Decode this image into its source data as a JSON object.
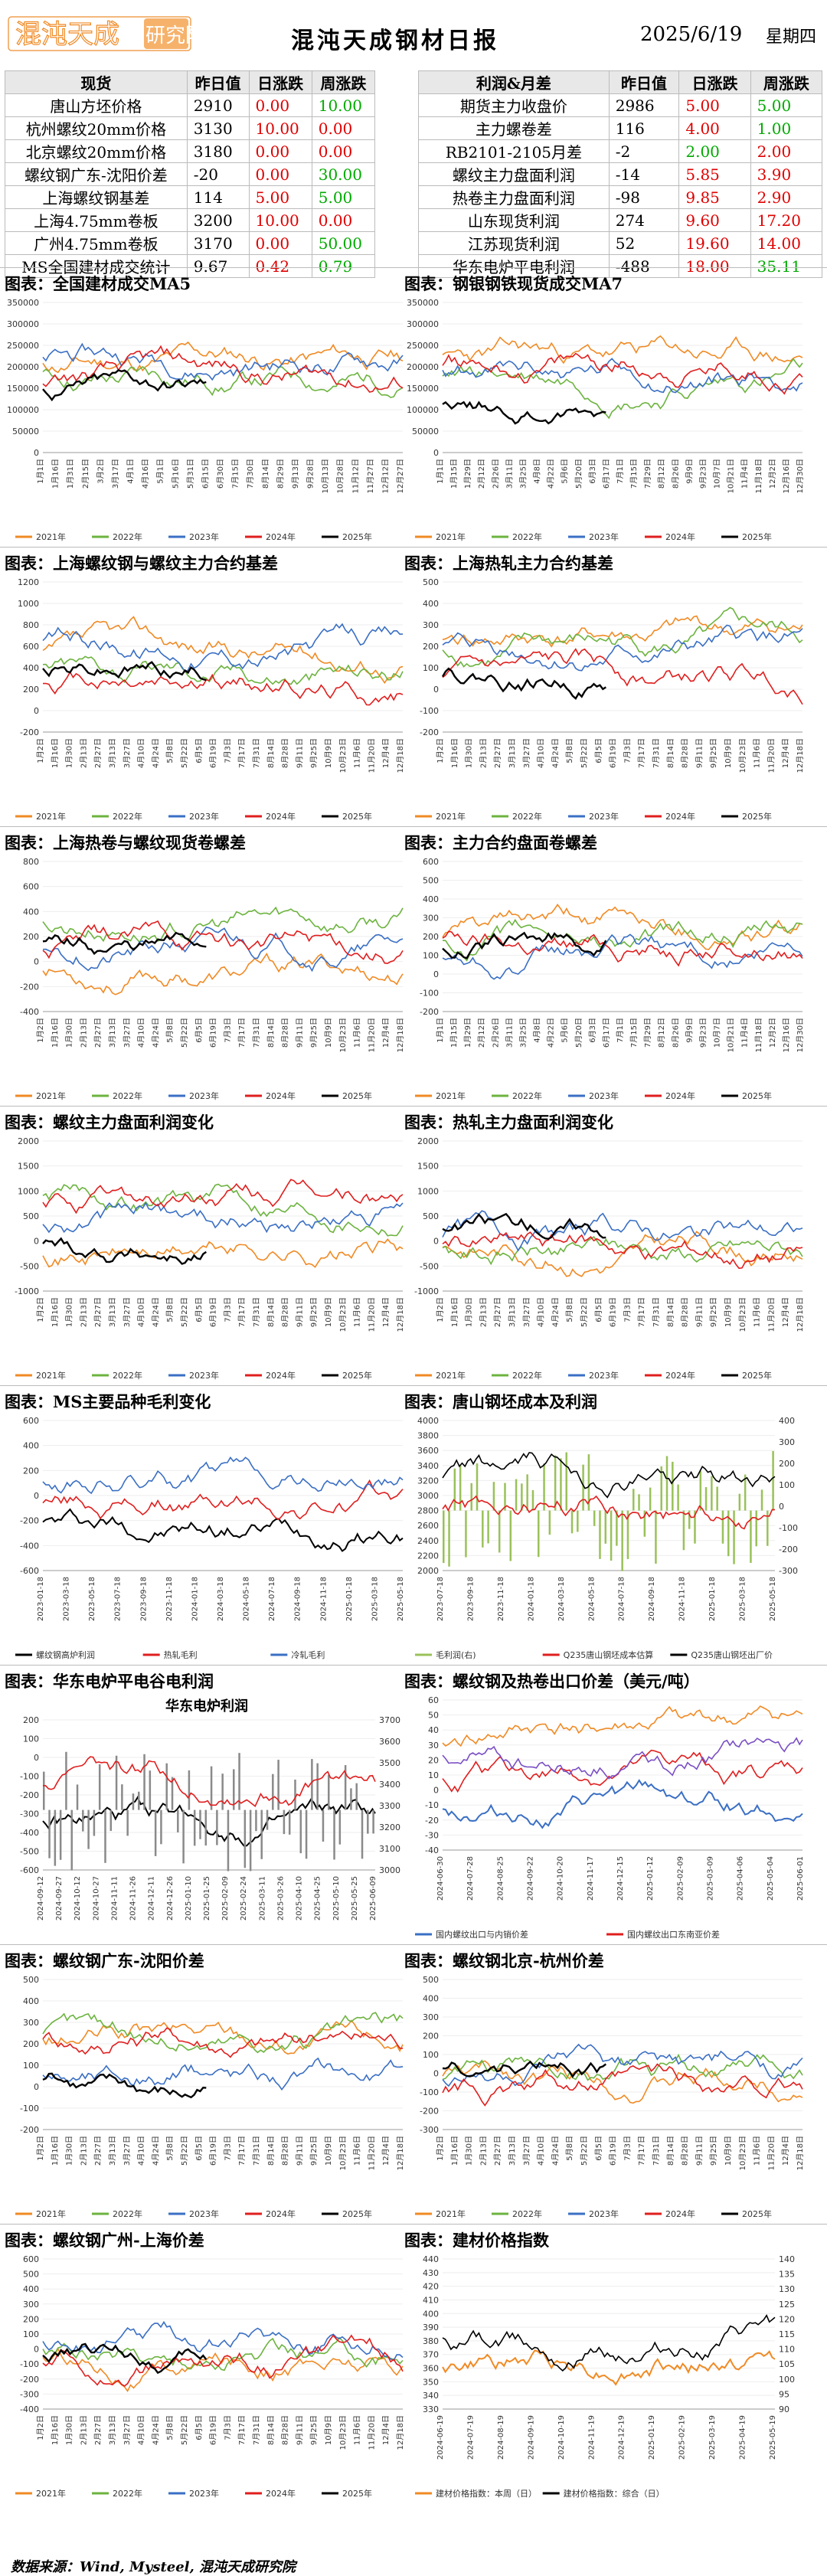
{
  "header": {
    "logo_text": "混沌天成研究院",
    "title": "混沌天成钢材日报",
    "date": "2025/6/19",
    "weekday": "星期四"
  },
  "left_table": {
    "headers": [
      "现货",
      "昨日值",
      "日涨跌",
      "周涨跌"
    ],
    "rows": [
      [
        "唐山方坯价格",
        "2910",
        "0.00",
        "10.00"
      ],
      [
        "杭州螺纹20mm价格",
        "3130",
        "10.00",
        "0.00"
      ],
      [
        "北京螺纹20mm价格",
        "3180",
        "0.00",
        "0.00"
      ],
      [
        "螺纹钢广东-沈阳价差",
        "-20",
        "0.00",
        "30.00"
      ],
      [
        "上海螺纹钢基差",
        "114",
        "5.00",
        "5.00"
      ],
      [
        "上海4.75mm卷板",
        "3200",
        "10.00",
        "0.00"
      ],
      [
        "广州4.75mm卷板",
        "3170",
        "0.00",
        "50.00"
      ],
      [
        "MS全国建材成交统计",
        "9.67",
        "0.42",
        "0.79"
      ]
    ],
    "colors": [
      [
        "red",
        "green"
      ],
      [
        "red",
        "red"
      ],
      [
        "red",
        "red"
      ],
      [
        "red",
        "green"
      ],
      [
        "red",
        "green"
      ],
      [
        "red",
        "red"
      ],
      [
        "red",
        "green"
      ],
      [
        "red",
        "green"
      ]
    ]
  },
  "right_table": {
    "headers": [
      "利润&月差",
      "昨日值",
      "日涨跌",
      "周涨跌"
    ],
    "rows": [
      [
        "期货主力收盘价",
        "2986",
        "5.00",
        "5.00"
      ],
      [
        "主力螺卷差",
        "116",
        "4.00",
        "1.00"
      ],
      [
        "RB2101-2105月差",
        "-2",
        "2.00",
        "2.00"
      ],
      [
        "螺纹主力盘面利润",
        "-14",
        "5.85",
        "3.90"
      ],
      [
        "热卷主力盘面利润",
        "-98",
        "9.85",
        "2.90"
      ],
      [
        "山东现货利润",
        "274",
        "9.60",
        "17.20"
      ],
      [
        "江苏现货利润",
        "52",
        "19.60",
        "14.00"
      ],
      [
        "华东电炉平电利润",
        "-488",
        "18.00",
        "35.11"
      ]
    ],
    "colors": [
      [
        "red",
        "green"
      ],
      [
        "red",
        "green"
      ],
      [
        "green",
        "red"
      ],
      [
        "red",
        "red"
      ],
      [
        "red",
        "red"
      ],
      [
        "red",
        "red"
      ],
      [
        "red",
        "red"
      ],
      [
        "red",
        "green"
      ]
    ]
  },
  "colors": {
    "y2021": "#f08a24",
    "y2022": "#6cb33f",
    "y2023": "#3a6fc4",
    "y2024": "#e01e1e",
    "y2025": "#000000",
    "red": "#e00000",
    "green": "#00aa00"
  },
  "legend_years": [
    "2021年",
    "2022年",
    "2023年",
    "2024年",
    "2025年"
  ],
  "panels": [
    {
      "title": "图表：全国建材成交MA5",
      "ylim": [
        0,
        350000
      ],
      "yticks": [
        "350000",
        "300000",
        "250000",
        "200000",
        "150000",
        "100000",
        "50000",
        "0"
      ],
      "xticks": [
        "1月1日",
        "1月16日",
        "1月31日",
        "2月15日",
        "3月2日",
        "3月17日",
        "4月1日",
        "4月16日",
        "5月1日",
        "5月16日",
        "5月31日",
        "6月15日",
        "6月30日",
        "7月15日",
        "7月30日",
        "8月14日",
        "8月29日",
        "9月13日",
        "9月28日",
        "10月13日",
        "10月28日",
        "11月12日",
        "11月27日",
        "12月12日",
        "12月27日"
      ],
      "legend": "years",
      "seed": 11
    },
    {
      "title": "图表：钢银钢铁现货成交MA7",
      "ylim": [
        0,
        350000
      ],
      "yticks": [
        "350000",
        "300000",
        "250000",
        "200000",
        "150000",
        "100000",
        "50000",
        "0"
      ],
      "xticks": [
        "1月1日",
        "1月15日",
        "1月29日",
        "2月12日",
        "2月26日",
        "3月11日",
        "3月25日",
        "4月8日",
        "4月22日",
        "5月6日",
        "5月20日",
        "6月3日",
        "6月17日",
        "7月1日",
        "7月15日",
        "7月29日",
        "8月12日",
        "8月26日",
        "9月9日",
        "9月23日",
        "10月7日",
        "10月21日",
        "11月4日",
        "11月18日",
        "12月2日",
        "12月16日",
        "12月30日"
      ],
      "legend": "years",
      "seed": 23
    },
    {
      "title": "图表：上海螺纹钢与螺纹主力合约基差",
      "ylim": [
        -200,
        1200
      ],
      "yticks": [
        "1200",
        "1000",
        "800",
        "600",
        "400",
        "200",
        "0",
        "-200"
      ],
      "xticks": [
        "1月2日",
        "1月16日",
        "1月30日",
        "2月13日",
        "2月27日",
        "3月13日",
        "3月27日",
        "4月10日",
        "4月24日",
        "5月8日",
        "5月22日",
        "6月5日",
        "6月19日",
        "7月3日",
        "7月17日",
        "7月31日",
        "8月14日",
        "8月28日",
        "9月11日",
        "9月25日",
        "10月9日",
        "10月23日",
        "11月6日",
        "11月20日",
        "12月4日",
        "12月18日"
      ],
      "legend": "years",
      "seed": 37
    },
    {
      "title": "图表：上海热轧主力合约基差",
      "ylim": [
        -200,
        500
      ],
      "yticks": [
        "500",
        "400",
        "300",
        "200",
        "100",
        "0",
        "-100",
        "-200"
      ],
      "xticks": [
        "1月2日",
        "1月16日",
        "1月30日",
        "2月13日",
        "2月27日",
        "3月13日",
        "3月27日",
        "4月10日",
        "4月24日",
        "5月8日",
        "5月22日",
        "6月5日",
        "6月19日",
        "7月3日",
        "7月17日",
        "7月31日",
        "8月14日",
        "8月28日",
        "9月11日",
        "9月25日",
        "10月9日",
        "10月23日",
        "11月6日",
        "11月20日",
        "12月4日",
        "12月18日"
      ],
      "legend": "years",
      "seed": 41
    },
    {
      "title": "图表：上海热卷与螺纹现货卷螺差",
      "ylim": [
        -400,
        800
      ],
      "yticks": [
        "800",
        "600",
        "400",
        "200",
        "0",
        "-200",
        "-400"
      ],
      "xticks": [
        "1月2日",
        "1月16日",
        "1月30日",
        "2月13日",
        "2月27日",
        "3月13日",
        "3月27日",
        "4月10日",
        "4月24日",
        "5月8日",
        "5月22日",
        "6月5日",
        "6月19日",
        "7月3日",
        "7月17日",
        "7月31日",
        "8月14日",
        "8月28日",
        "9月11日",
        "9月25日",
        "10月9日",
        "10月23日",
        "11月6日",
        "11月20日",
        "12月4日",
        "12月18日"
      ],
      "legend": "years",
      "seed": 53
    },
    {
      "title": "图表：主力合约盘面卷螺差",
      "ylim": [
        -200,
        600
      ],
      "yticks": [
        "600",
        "500",
        "400",
        "300",
        "200",
        "100",
        "0",
        "-100",
        "-200"
      ],
      "xticks": [
        "1月1日",
        "1月15日",
        "1月29日",
        "2月12日",
        "2月26日",
        "3月11日",
        "3月25日",
        "4月8日",
        "4月22日",
        "5月6日",
        "5月20日",
        "6月3日",
        "6月17日",
        "7月1日",
        "7月15日",
        "7月29日",
        "8月12日",
        "8月26日",
        "9月9日",
        "9月23日",
        "10月7日",
        "10月21日",
        "11月4日",
        "11月18日",
        "12月2日",
        "12月16日",
        "12月30日"
      ],
      "legend": "years",
      "seed": 61
    },
    {
      "title": "图表：螺纹主力盘面利润变化",
      "ylim": [
        -1000,
        2000
      ],
      "yticks": [
        "2000",
        "1500",
        "1000",
        "500",
        "0",
        "-500",
        "-1000"
      ],
      "xticks": [
        "1月2日",
        "1月16日",
        "1月30日",
        "2月13日",
        "2月27日",
        "3月13日",
        "3月27日",
        "4月10日",
        "4月24日",
        "5月8日",
        "5月22日",
        "6月5日",
        "6月19日",
        "7月3日",
        "7月17日",
        "7月31日",
        "8月14日",
        "8月28日",
        "9月11日",
        "9月25日",
        "10月9日",
        "10月23日",
        "11月6日",
        "11月20日",
        "12月4日",
        "12月18日"
      ],
      "legend": "years",
      "seed": 71
    },
    {
      "title": "图表：热轧主力盘面利润变化",
      "ylim": [
        -1000,
        2000
      ],
      "yticks": [
        "2000",
        "1500",
        "1000",
        "500",
        "0",
        "-500",
        "-1000"
      ],
      "xticks": [
        "1月2日",
        "1月16日",
        "1月30日",
        "2月13日",
        "2月27日",
        "3月13日",
        "3月27日",
        "4月10日",
        "4月24日",
        "5月8日",
        "5月22日",
        "6月5日",
        "6月19日",
        "7月3日",
        "7月17日",
        "7月31日",
        "8月14日",
        "8月28日",
        "9月11日",
        "9月25日",
        "10月9日",
        "10月23日",
        "11月6日",
        "11月20日",
        "12月4日",
        "12月18日"
      ],
      "legend": "years",
      "seed": 83
    },
    {
      "title": "图表：MS主要品种毛利变化",
      "ylim": [
        -600,
        600
      ],
      "yticks": [
        "600",
        "400",
        "200",
        "0",
        "-200",
        "-400",
        "-600"
      ],
      "xticks": [
        "2023-01-18",
        "2023-03-18",
        "2023-05-18",
        "2023-07-18",
        "2023-09-18",
        "2023-11-18",
        "2024-01-18",
        "2024-03-18",
        "2024-05-18",
        "2024-07-18",
        "2024-09-18",
        "2024-11-18",
        "2025-01-18",
        "2025-03-18",
        "2025-05-18"
      ],
      "legend": "custom",
      "legend_items": [
        [
          "螺纹钢高炉利润",
          "#000000"
        ],
        [
          "热轧毛利",
          "#e01e1e"
        ],
        [
          "冷轧毛利",
          "#3a6fc4"
        ]
      ],
      "seed": 97
    },
    {
      "title": "图表：唐山钢坯成本及利润",
      "ylim": [
        2000,
        4000
      ],
      "yticks": [
        "4000",
        "3800",
        "3600",
        "3400",
        "3200",
        "3000",
        "2800",
        "2600",
        "2400",
        "2200",
        "2000"
      ],
      "y2ticks": [
        "400",
        "300",
        "200",
        "100",
        "0",
        "-100",
        "-200",
        "-300"
      ],
      "xticks": [
        "2023-07-18",
        "2023-09-18",
        "2023-11-18",
        "2024-01-18",
        "2024-03-18",
        "2024-05-18",
        "2024-07-18",
        "2024-09-18",
        "2024-11-18",
        "2025-01-18",
        "2025-03-18",
        "2025-05-18"
      ],
      "legend": "custom",
      "legend_items": [
        [
          "毛利润(右)",
          "#9ac15a"
        ],
        [
          "Q235唐山钢坯成本估算",
          "#e01e1e"
        ],
        [
          "Q235唐山钢坯出厂价",
          "#000000"
        ]
      ],
      "seed": 103
    },
    {
      "title": "图表：华东电炉平电谷电利润",
      "inner_title": "华东电炉利润",
      "ylim": [
        -600,
        200
      ],
      "yticks": [
        "200",
        "100",
        "0",
        "-100",
        "-200",
        "-300",
        "-400",
        "-500",
        "-600"
      ],
      "y2ticks": [
        "3700",
        "3600",
        "3500",
        "3400",
        "3300",
        "3200",
        "3100",
        "3000"
      ],
      "xticks": [
        "2024-09-12",
        "2024-09-27",
        "2024-10-12",
        "2024-10-27",
        "2024-11-11",
        "2024-11-26",
        "2024-12-11",
        "2024-12-26",
        "2025-01-10",
        "2025-01-25",
        "2025-02-09",
        "2025-02-24",
        "2025-03-11",
        "2025-03-26",
        "2025-04-10",
        "2025-04-25",
        "2025-05-10",
        "2025-05-25",
        "2025-06-09"
      ],
      "legend": "custom",
      "legend_items": [
        [
          "平电利润",
          "#000000"
        ],
        [
          "谷电利润",
          "#8a8a8a"
        ],
        [
          "杭州螺纹(右轴)",
          "#e01e1e"
        ]
      ],
      "seed": 109
    },
    {
      "title": "图表：螺纹钢及热卷出口价差（美元/吨）",
      "ylim": [
        -40,
        60
      ],
      "yticks": [
        "60",
        "50",
        "40",
        "30",
        "20",
        "10",
        "0",
        "-10",
        "-20",
        "-30",
        "-40"
      ],
      "xticks": [
        "2024-06-30",
        "2024-07-28",
        "2024-08-25",
        "2024-09-22",
        "2024-10-20",
        "2024-11-17",
        "2024-12-15",
        "2025-01-12",
        "2025-02-09",
        "2025-03-09",
        "2025-04-06",
        "2025-05-04",
        "2025-06-01"
      ],
      "legend": "custom",
      "legend_items": [
        [
          "国内螺纹出口与内销价差",
          "#3a6fc4"
        ],
        [
          "国内螺纹出口东南亚价差",
          "#e01e1e"
        ],
        [
          "国内热轧板卷出口与内销价差",
          "#7a4fc4"
        ],
        [
          "国内热轧板卷出口东南亚价差",
          "#f08a24"
        ]
      ],
      "seed": 113
    },
    {
      "title": "图表：螺纹钢广东-沈阳价差",
      "ylim": [
        -200,
        500
      ],
      "yticks": [
        "500",
        "400",
        "300",
        "200",
        "100",
        "0",
        "-100",
        "-200"
      ],
      "xticks": [
        "1月2日",
        "1月16日",
        "1月30日",
        "2月13日",
        "2月27日",
        "3月13日",
        "3月27日",
        "4月10日",
        "4月24日",
        "5月8日",
        "5月22日",
        "6月5日",
        "6月19日",
        "7月3日",
        "7月17日",
        "7月31日",
        "8月14日",
        "8月28日",
        "9月11日",
        "9月25日",
        "10月9日",
        "10月23日",
        "11月6日",
        "11月20日",
        "12月4日",
        "12月18日"
      ],
      "legend": "years",
      "seed": 127
    },
    {
      "title": "图表：螺纹钢北京-杭州价差",
      "ylim": [
        -300,
        500
      ],
      "yticks": [
        "500",
        "400",
        "300",
        "200",
        "100",
        "0",
        "-100",
        "-200",
        "-300"
      ],
      "xticks": [
        "1月2日",
        "1月16日",
        "1月30日",
        "2月13日",
        "2月27日",
        "3月13日",
        "3月27日",
        "4月10日",
        "4月24日",
        "5月8日",
        "5月22日",
        "6月5日",
        "6月19日",
        "7月3日",
        "7月17日",
        "7月31日",
        "8月14日",
        "8月28日",
        "9月11日",
        "9月25日",
        "10月9日",
        "10月23日",
        "11月6日",
        "11月20日",
        "12月4日",
        "12月18日"
      ],
      "legend": "years",
      "seed": 131
    },
    {
      "title": "图表：螺纹钢广州-上海价差",
      "ylim": [
        -400,
        600
      ],
      "yticks": [
        "600",
        "500",
        "400",
        "300",
        "200",
        "100",
        "0",
        "-100",
        "-200",
        "-300",
        "-400"
      ],
      "xticks": [
        "1月2日",
        "1月16日",
        "1月30日",
        "2月13日",
        "2月27日",
        "3月13日",
        "3月27日",
        "4月10日",
        "4月24日",
        "5月8日",
        "5月22日",
        "6月5日",
        "6月19日",
        "7月3日",
        "7月17日",
        "7月31日",
        "8月14日",
        "8月28日",
        "9月11日",
        "9月25日",
        "10月9日",
        "10月23日",
        "11月6日",
        "11月20日",
        "12月4日",
        "12月18日"
      ],
      "legend": "years",
      "seed": 137
    },
    {
      "title": "图表：建材价格指数",
      "ylim": [
        330,
        440
      ],
      "yticks": [
        "440",
        "430",
        "420",
        "410",
        "400",
        "390",
        "380",
        "370",
        "360",
        "350",
        "340",
        "330"
      ],
      "y2ticks": [
        "140",
        "135",
        "130",
        "125",
        "120",
        "115",
        "110",
        "105",
        "100",
        "95",
        "90"
      ],
      "xticks": [
        "2024-06-19",
        "2024-07-19",
        "2024-08-19",
        "2024-09-19",
        "2024-10-19",
        "2024-11-19",
        "2024-12-19",
        "2025-01-19",
        "2025-02-19",
        "2025-03-19",
        "2025-04-19",
        "2025-05-19"
      ],
      "legend": "custom",
      "legend_items": [
        [
          "建材价格指数：本周（日）",
          "#f08a24"
        ],
        [
          "建材价格指数：综合（日）",
          "#000000"
        ]
      ],
      "seed": 149
    }
  ],
  "footer": "数据来源：Wind, Mysteel, 混沌天成研究院"
}
